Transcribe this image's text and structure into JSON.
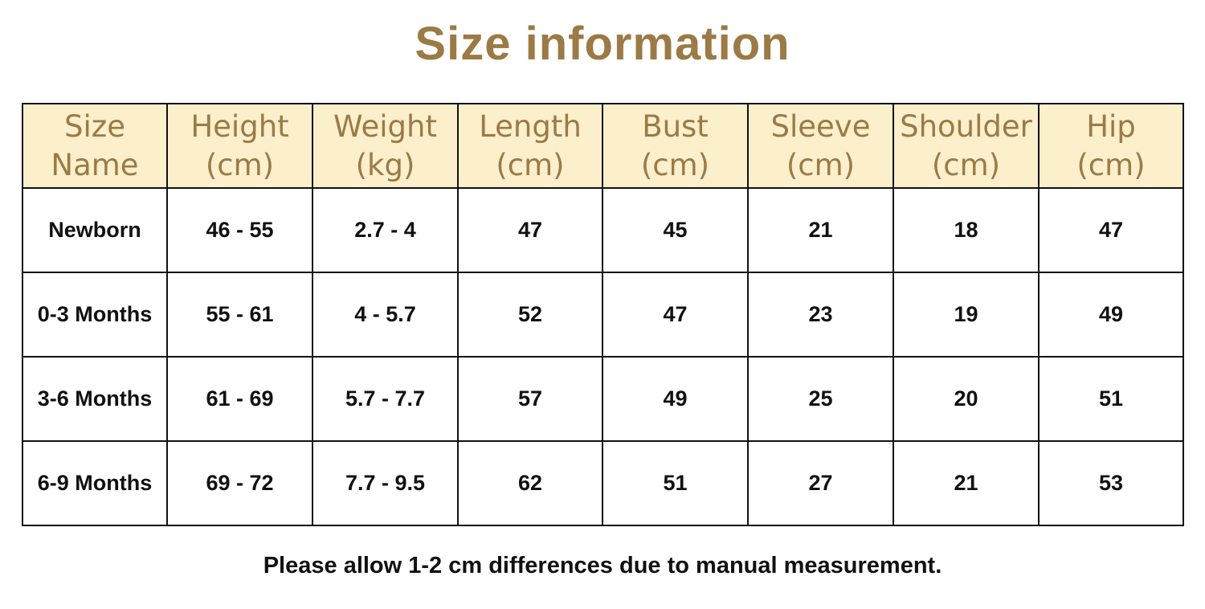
{
  "header": {
    "title": "Size information"
  },
  "table": {
    "columns": [
      [
        "Size",
        "Name"
      ],
      [
        "Height",
        "(cm)"
      ],
      [
        "Weight",
        "(kg)"
      ],
      [
        "Length",
        "(cm)"
      ],
      [
        "Bust",
        "(cm)"
      ],
      [
        "Sleeve",
        "(cm)"
      ],
      [
        "Shoulder",
        "(cm)"
      ],
      [
        "Hip",
        "(cm)"
      ]
    ],
    "rows": [
      [
        "Newborn",
        "46 - 55",
        "2.7 - 4",
        "47",
        "45",
        "21",
        "18",
        "47"
      ],
      [
        "0-3 Months",
        "55 - 61",
        "4 - 5.7",
        "52",
        "47",
        "23",
        "19",
        "49"
      ],
      [
        "3-6 Months",
        "61 - 69",
        "5.7 - 7.7",
        "57",
        "49",
        "25",
        "20",
        "51"
      ],
      [
        "6-9 Months",
        "69 - 72",
        "7.7 - 9.5",
        "62",
        "51",
        "27",
        "21",
        "53"
      ]
    ]
  },
  "footer": {
    "note": "Please allow 1-2 cm differences due to manual measurement."
  }
}
